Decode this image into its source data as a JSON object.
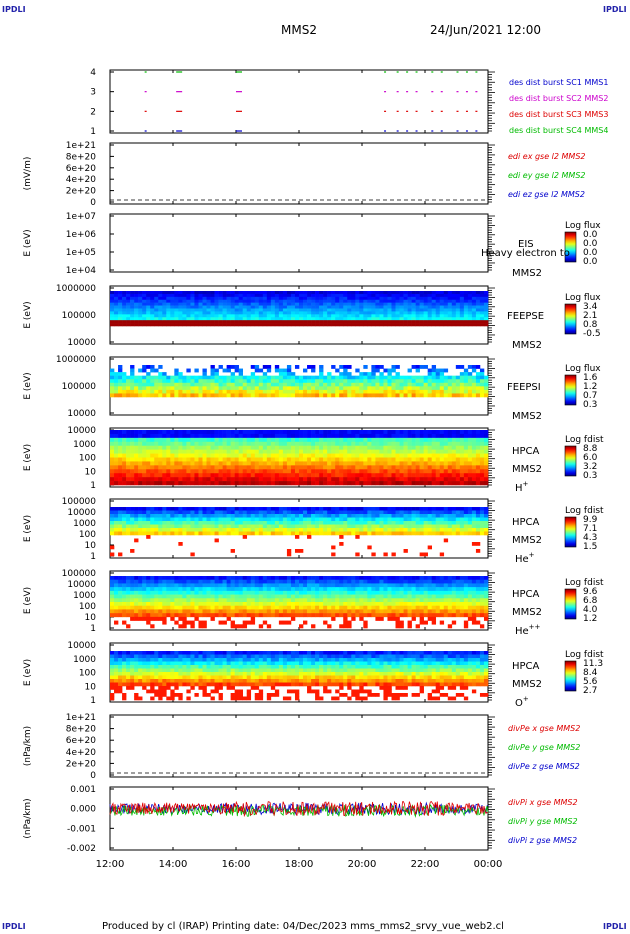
{
  "corner_label": "IPDLI",
  "header": {
    "spacecraft": "MMS2",
    "datetime": "24/Jun/2021 12:00"
  },
  "footer": {
    "text": "Produced by cl (IRAP)   Printing date: 04/Dec/2023   mms_mms2_srvy_vue_web2.cl"
  },
  "x_ticks": [
    "12:00",
    "14:00",
    "16:00",
    "18:00",
    "20:00",
    "22:00",
    "00:00"
  ],
  "colors": {
    "red": "#dd0000",
    "green": "#00bb00",
    "blue": "#0000cc",
    "magenta": "#cc00cc"
  },
  "chart_data": [
    {
      "type": "scatter",
      "name": "burst",
      "yticks": [
        "1",
        "2",
        "3",
        "4"
      ],
      "labels": [
        {
          "text": "des dist burst SC1 MMS1",
          "color": "#0000cc"
        },
        {
          "text": "des dist burst SC2 MMS2",
          "color": "#cc00cc"
        },
        {
          "text": "des dist burst SC3 MMS3",
          "color": "#dd0000"
        },
        {
          "text": "des dist burst SC4 MMS4",
          "color": "#00bb00"
        }
      ],
      "burst_hours": [
        13.1,
        14.1,
        16.0,
        20.7,
        21.1,
        21.4,
        21.7,
        22.2,
        22.5,
        23.0,
        23.3,
        23.6
      ]
    },
    {
      "type": "line",
      "name": "edi",
      "ylabel": "(mV/m)",
      "yticks": [
        "1e+21",
        "8e+20",
        "6e+20",
        "4e+20",
        "2e+20",
        "0"
      ],
      "labels": [
        {
          "text": "edi ex gse l2 MMS2",
          "color": "#dd0000"
        },
        {
          "text": "edi ey gse l2 MMS2",
          "color": "#00bb00"
        },
        {
          "text": "edi ez gse l2 MMS2",
          "color": "#0000cc"
        }
      ]
    },
    {
      "type": "heatmap",
      "name": "eis",
      "ylabel": "E (eV)",
      "yticks": [
        "1e+07",
        "1e+06",
        "1e+05",
        "1e+04"
      ],
      "labels": [
        {
          "text": "EIS"
        },
        {
          "text": "MMS2"
        }
      ],
      "overlay": "Heavy electron to",
      "cbar_title": "Log flux",
      "cbar_ticks": [
        "0.0",
        "0.0",
        "0.0",
        "0.0"
      ]
    },
    {
      "type": "heatmap",
      "name": "feepse",
      "ylabel": "E (eV)",
      "yticks": [
        "1000000",
        "100000",
        "10000"
      ],
      "labels": [
        {
          "text": "FEEPSE"
        },
        {
          "text": "MMS2"
        }
      ],
      "cbar_title": "Log flux",
      "cbar_ticks": [
        "3.4",
        "2.1",
        "0.8",
        "-0.5"
      ]
    },
    {
      "type": "heatmap",
      "name": "feepsi",
      "ylabel": "E (eV)",
      "yticks": [
        "1000000",
        "100000",
        "10000"
      ],
      "labels": [
        {
          "text": "FEEPSI"
        },
        {
          "text": "MMS2"
        }
      ],
      "cbar_title": "Log flux",
      "cbar_ticks": [
        "1.6",
        "1.2",
        "0.7",
        "0.3"
      ]
    },
    {
      "type": "heatmap",
      "name": "hpca_h",
      "ylabel": "E (eV)",
      "yticks": [
        "10000",
        "1000",
        "100",
        "10",
        "1"
      ],
      "labels": [
        {
          "text": "HPCA"
        },
        {
          "text": "MMS2"
        }
      ],
      "species": "H",
      "species_sup": "+",
      "cbar_title": "Log fdist",
      "cbar_ticks": [
        "8.8",
        "6.0",
        "3.2",
        "0.3"
      ]
    },
    {
      "type": "heatmap",
      "name": "hpca_he",
      "ylabel": "E (eV)",
      "yticks": [
        "100000",
        "10000",
        "1000",
        "100",
        "10",
        "1"
      ],
      "labels": [
        {
          "text": "HPCA"
        },
        {
          "text": "MMS2"
        }
      ],
      "species": "He",
      "species_sup": "+",
      "cbar_title": "Log fdist",
      "cbar_ticks": [
        "9.9",
        "7.1",
        "4.3",
        "1.5"
      ]
    },
    {
      "type": "heatmap",
      "name": "hpca_hepp",
      "ylabel": "E (eV)",
      "yticks": [
        "100000",
        "10000",
        "1000",
        "100",
        "10",
        "1"
      ],
      "labels": [
        {
          "text": "HPCA"
        },
        {
          "text": "MMS2"
        }
      ],
      "species": "He",
      "species_sup": "++",
      "cbar_title": "Log fdist",
      "cbar_ticks": [
        "9.6",
        "6.8",
        "4.0",
        "1.2"
      ]
    },
    {
      "type": "heatmap",
      "name": "hpca_o",
      "ylabel": "E (eV)",
      "yticks": [
        "10000",
        "1000",
        "100",
        "10",
        "1"
      ],
      "labels": [
        {
          "text": "HPCA"
        },
        {
          "text": "MMS2"
        }
      ],
      "species": "O",
      "species_sup": "+",
      "cbar_title": "Log fdist",
      "cbar_ticks": [
        "11.3",
        "8.4",
        "5.6",
        "2.7"
      ]
    },
    {
      "type": "line",
      "name": "divpe",
      "ylabel": "(nPa/km)",
      "yticks": [
        "1e+21",
        "8e+20",
        "6e+20",
        "4e+20",
        "2e+20",
        "0"
      ],
      "labels": [
        {
          "text": "divPe x gse MMS2",
          "color": "#dd0000"
        },
        {
          "text": "divPe y gse MMS2",
          "color": "#00bb00"
        },
        {
          "text": "divPe z gse MMS2",
          "color": "#0000cc"
        }
      ]
    },
    {
      "type": "line",
      "name": "divpi",
      "ylabel": "(nPa/km)",
      "yticks": [
        "0.001",
        "0.000",
        "-0.001",
        "-0.002"
      ],
      "labels": [
        {
          "text": "divPi x gse MMS2",
          "color": "#dd0000"
        },
        {
          "text": "divPi y gse MMS2",
          "color": "#00bb00"
        },
        {
          "text": "divPi z gse MMS2",
          "color": "#0000cc"
        }
      ]
    }
  ]
}
